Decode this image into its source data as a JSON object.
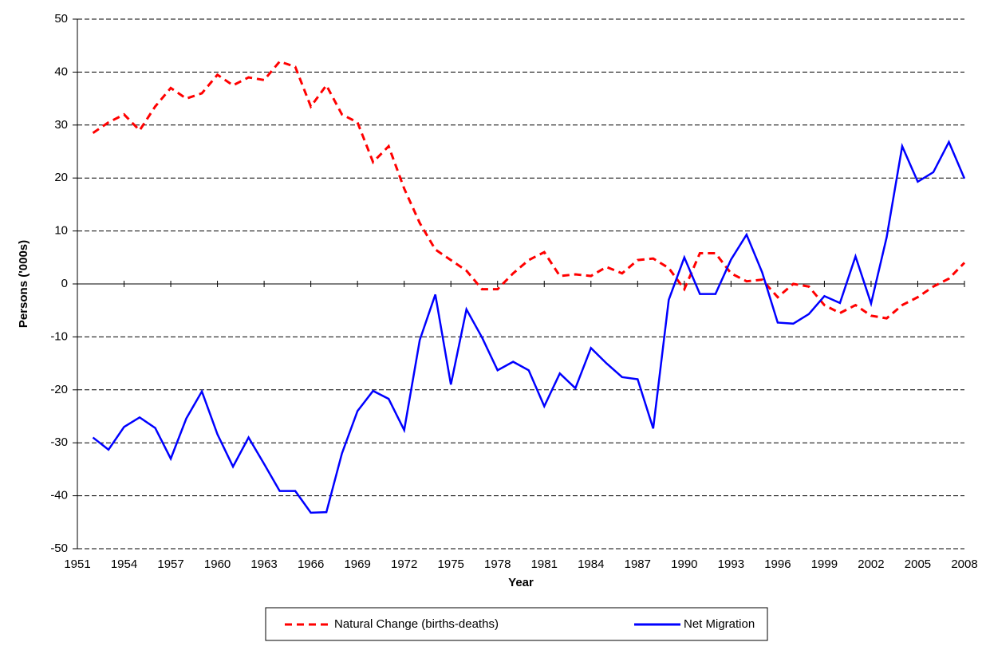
{
  "chart_data": {
    "type": "line",
    "x_label": "Year",
    "y_label": "Persons ('000s)",
    "x": [
      1952,
      1953,
      1954,
      1955,
      1956,
      1957,
      1958,
      1959,
      1960,
      1961,
      1962,
      1963,
      1964,
      1965,
      1966,
      1967,
      1968,
      1969,
      1970,
      1971,
      1972,
      1973,
      1974,
      1975,
      1976,
      1977,
      1978,
      1979,
      1980,
      1981,
      1982,
      1983,
      1984,
      1985,
      1986,
      1987,
      1988,
      1989,
      1990,
      1991,
      1992,
      1993,
      1994,
      1995,
      1996,
      1997,
      1998,
      1999,
      2000,
      2001,
      2002,
      2003,
      2004,
      2005,
      2006,
      2007,
      2008
    ],
    "series": [
      {
        "name": "Natural Change (births-deaths)",
        "color": "#ff0000",
        "linestyle": "dashed",
        "values": [
          28.5,
          30.5,
          32,
          29,
          33.5,
          37,
          35,
          36,
          39.5,
          37.5,
          39,
          38.5,
          42,
          41,
          33.5,
          37.5,
          32,
          30.5,
          23,
          26,
          18,
          11.5,
          6.5,
          4.5,
          2.5,
          -1,
          -1,
          2,
          4.5,
          6,
          1.5,
          1.8,
          1.5,
          3.2,
          2,
          4.5,
          4.8,
          3,
          -1,
          5.8,
          5.8,
          2,
          0.5,
          0.8,
          -2.5,
          0,
          -0.5,
          -4,
          -5.5,
          -4,
          -6,
          -6.5,
          -4,
          -2.5,
          -0.5,
          1,
          4
        ]
      },
      {
        "name": "Net Migration",
        "color": "#0000ff",
        "linestyle": "solid",
        "values": [
          -29,
          -31.3,
          -27,
          -25.2,
          -27.2,
          -33,
          -25.4,
          -20.3,
          -28.4,
          -34.5,
          -29,
          -34,
          -39.1,
          -39.1,
          -43.2,
          -43.1,
          -32,
          -24,
          -20.2,
          -21.7,
          -27.6,
          -10.6,
          -2,
          -19,
          -4.8,
          -10.1,
          -16.3,
          -14.7,
          -16.3,
          -23.1,
          -16.9,
          -19.7,
          -12.1,
          -15,
          -17.6,
          -18,
          -27.3,
          -3,
          5,
          -1.9,
          -1.9,
          4.6,
          9.3,
          2.2,
          -7.3,
          -7.5,
          -5.7,
          -2.3,
          -3.6,
          5.2,
          -3.7,
          8.8,
          26,
          19.3,
          21.1,
          26.8,
          19.9
        ]
      }
    ],
    "xlim": [
      1951,
      2008
    ],
    "xticks": [
      1951,
      1954,
      1957,
      1960,
      1963,
      1966,
      1969,
      1972,
      1975,
      1978,
      1981,
      1984,
      1987,
      1990,
      1993,
      1996,
      1999,
      2002,
      2005,
      2008
    ],
    "ylim": [
      -50,
      50
    ],
    "yticks": [
      -50,
      -40,
      -30,
      -20,
      -10,
      0,
      10,
      20,
      30,
      40,
      50
    ],
    "grid": true,
    "legend": "bottom"
  }
}
